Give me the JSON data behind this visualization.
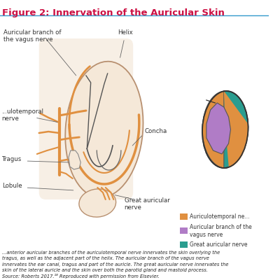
{
  "title": "Figure 2: Innervation of the Auricular Skin",
  "title_color": "#cc1144",
  "title_fontsize": 9.5,
  "separator_color": "#3399cc",
  "bg_color": "#ffffff",
  "ear_fill": "#f5e8d8",
  "ear_edge": "#b89070",
  "nerve_orange": "#e09040",
  "nerve_purple": "#b07cc6",
  "nerve_teal": "#2a9d8f",
  "label_fontsize": 6.2,
  "label_color": "#333333",
  "legend_colors": [
    "#e09040",
    "#b07cc6",
    "#2a9d8f"
  ],
  "legend_labels": [
    "Auriculotemporal ne...",
    "Auricular branch of the\nvagus nerve",
    "Great auricular nerve"
  ]
}
